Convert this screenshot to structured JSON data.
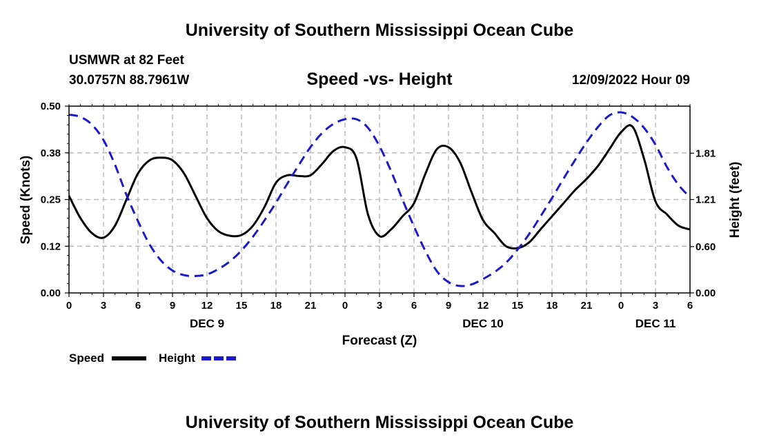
{
  "header": {
    "title": "University of Southern Mississippi Ocean Cube",
    "station_name": "USMWR at 82 Feet",
    "station_coords": "30.0757N  88.7961W",
    "chart_title": "Speed -vs- Height",
    "datetime": "12/09/2022 Hour 09"
  },
  "footer": {
    "title": "University of Southern Mississippi Ocean Cube"
  },
  "colors": {
    "speed": "#000000",
    "height": "#1a1acc",
    "grid": "#bbbbbb"
  },
  "chart_data": {
    "type": "line",
    "title": "Speed -vs- Height",
    "xlabel": "Forecast (Z)",
    "ylabel_left": "Speed (Knots)",
    "ylabel_right": "Height (feet)",
    "xlim": [
      0,
      54
    ],
    "ylim_left": [
      0,
      0.5
    ],
    "ylim_right": [
      0,
      2.42
    ],
    "x_ticks": [
      0,
      3,
      6,
      9,
      12,
      15,
      18,
      21,
      24,
      27,
      30,
      33,
      36,
      39,
      42,
      45,
      48,
      51,
      54
    ],
    "x_tick_labels": [
      "0",
      "3",
      "6",
      "9",
      "12",
      "15",
      "18",
      "21",
      "0",
      "3",
      "6",
      "9",
      "12",
      "15",
      "18",
      "21",
      "0",
      "3",
      "6"
    ],
    "date_labels": [
      {
        "x": 12,
        "label": "DEC 9"
      },
      {
        "x": 36,
        "label": "DEC 10"
      },
      {
        "x": 51,
        "label": "DEC 11"
      }
    ],
    "left_ticks": [
      0.0,
      0.125,
      0.25,
      0.375,
      0.5
    ],
    "left_tick_labels": [
      "0.00",
      "0.12",
      "0.25",
      "0.38",
      "0.50"
    ],
    "right_ticks": [
      0.0,
      0.6,
      1.21,
      1.81
    ],
    "right_tick_labels": [
      "0.00",
      "0.60",
      "1.21",
      "1.81"
    ],
    "grid": true,
    "legend": [
      {
        "name": "Speed",
        "style": "solid"
      },
      {
        "name": "Height",
        "style": "dashed"
      }
    ],
    "series": [
      {
        "name": "Speed",
        "axis": "left",
        "style": "solid",
        "x": [
          0,
          1,
          2,
          3,
          4,
          5,
          6,
          7,
          8,
          9,
          10,
          11,
          12,
          13,
          14,
          15,
          16,
          17,
          18,
          19,
          20,
          21,
          22,
          23,
          24,
          25,
          26,
          27,
          28,
          29,
          30,
          31,
          32,
          33,
          34,
          35,
          36,
          37,
          38,
          39,
          40,
          41,
          42,
          43,
          44,
          45,
          46,
          47,
          48,
          49,
          50,
          51,
          52,
          53,
          54
        ],
        "values": [
          0.26,
          0.2,
          0.16,
          0.148,
          0.18,
          0.25,
          0.32,
          0.355,
          0.362,
          0.355,
          0.32,
          0.26,
          0.2,
          0.165,
          0.153,
          0.155,
          0.18,
          0.23,
          0.295,
          0.315,
          0.313,
          0.315,
          0.345,
          0.38,
          0.39,
          0.36,
          0.21,
          0.152,
          0.17,
          0.205,
          0.24,
          0.32,
          0.385,
          0.39,
          0.35,
          0.27,
          0.195,
          0.16,
          0.125,
          0.12,
          0.135,
          0.17,
          0.205,
          0.24,
          0.275,
          0.305,
          0.34,
          0.385,
          0.43,
          0.445,
          0.36,
          0.245,
          0.21,
          0.18,
          0.17
        ]
      },
      {
        "name": "Height",
        "axis": "right",
        "style": "dashed",
        "x": [
          0,
          1,
          2,
          3,
          4,
          5,
          6,
          7,
          8,
          9,
          10,
          11,
          12,
          13,
          14,
          15,
          16,
          17,
          18,
          19,
          20,
          21,
          22,
          23,
          24,
          25,
          26,
          27,
          28,
          29,
          30,
          31,
          32,
          33,
          34,
          35,
          36,
          37,
          38,
          39,
          40,
          41,
          42,
          43,
          44,
          45,
          46,
          47,
          48,
          49,
          50,
          51,
          52,
          53,
          54
        ],
        "values": [
          2.31,
          2.28,
          2.18,
          1.98,
          1.66,
          1.27,
          0.93,
          0.63,
          0.42,
          0.29,
          0.23,
          0.22,
          0.24,
          0.31,
          0.41,
          0.55,
          0.73,
          0.94,
          1.17,
          1.42,
          1.66,
          1.89,
          2.07,
          2.19,
          2.25,
          2.25,
          2.14,
          1.9,
          1.58,
          1.21,
          0.86,
          0.54,
          0.28,
          0.14,
          0.09,
          0.11,
          0.18,
          0.27,
          0.39,
          0.56,
          0.76,
          0.99,
          1.23,
          1.48,
          1.72,
          1.95,
          2.15,
          2.3,
          2.34,
          2.28,
          2.14,
          1.92,
          1.63,
          1.4,
          1.24
        ]
      }
    ]
  }
}
